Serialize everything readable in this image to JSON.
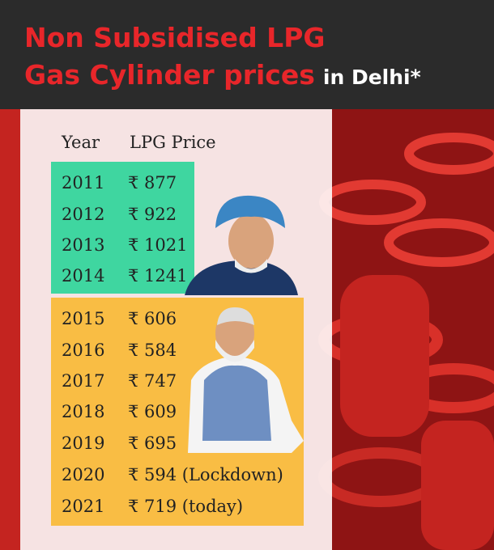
{
  "header": {
    "title_lines": [
      "Non Subsidised LPG",
      "Gas Cylinder prices"
    ],
    "suffix": "in Delhi*"
  },
  "table": {
    "columns": [
      "Year",
      "LPG Price"
    ],
    "rows": [
      [
        "2011",
        "₹ 877"
      ],
      [
        "2012",
        "₹ 922"
      ],
      [
        "2013",
        "₹ 1021"
      ],
      [
        "2014",
        "₹ 1241"
      ],
      [
        "2015",
        "₹ 606"
      ],
      [
        "2016",
        "₹ 584"
      ],
      [
        "2017",
        "₹ 747"
      ],
      [
        "2018",
        "₹ 609"
      ],
      [
        "2019",
        "₹ 695"
      ],
      [
        "2020",
        "₹ 594 (Lockdown)"
      ],
      [
        "2021",
        "₹ 719 (today)"
      ]
    ]
  }
}
